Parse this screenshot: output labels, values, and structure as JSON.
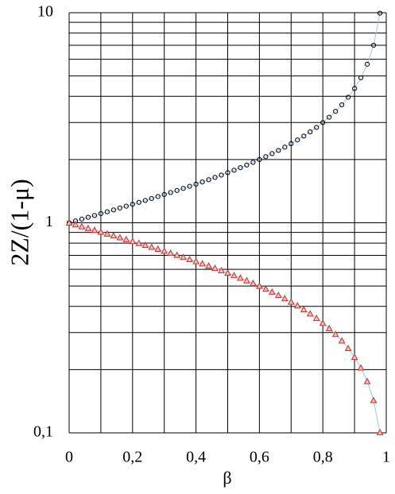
{
  "chart_data": {
    "type": "scatter",
    "xlabel": "β",
    "ylabel": "2Z/(1-μ)",
    "log_y": true,
    "grid": true,
    "xlim": [
      0,
      1
    ],
    "ylim": [
      0.1,
      10
    ],
    "xticks": [
      0,
      {
        "value": 0.2,
        "label": "0,2"
      },
      {
        "value": 0.4,
        "label": "0,4"
      },
      {
        "value": 0.6,
        "label": "0,6"
      },
      {
        "value": 0.8,
        "label": "0,8"
      },
      1
    ],
    "x_minor_ticks": [
      0.1,
      0.3,
      0.5,
      0.7,
      0.9
    ],
    "yticks": [
      {
        "value": 0.1,
        "label": "0,1"
      },
      1,
      10
    ],
    "y_minor_ticks": [
      0.2,
      0.3,
      0.4,
      0.5,
      0.6,
      0.7,
      0.8,
      0.9,
      2,
      3,
      4,
      5,
      6,
      7,
      8,
      9
    ],
    "x": [
      0,
      0.02,
      0.04,
      0.06,
      0.08,
      0.1,
      0.12,
      0.14,
      0.16,
      0.18,
      0.2,
      0.22,
      0.24,
      0.26,
      0.28,
      0.3,
      0.32,
      0.34,
      0.36,
      0.38,
      0.4,
      0.42,
      0.44,
      0.46,
      0.48,
      0.5,
      0.52,
      0.54,
      0.56,
      0.58,
      0.6,
      0.62,
      0.64,
      0.66,
      0.68,
      0.7,
      0.72,
      0.74,
      0.76,
      0.78,
      0.8,
      0.82,
      0.84,
      0.86,
      0.88,
      0.9,
      0.92,
      0.94,
      0.96,
      0.98
    ],
    "series": [
      {
        "color": "#000000",
        "marker": "circle",
        "fill": "none",
        "line_color": "#9ec5e8",
        "values": [
          1,
          1.0202,
          1.0408,
          1.0619,
          1.0835,
          1.1055,
          1.1282,
          1.1513,
          1.1751,
          1.1996,
          1.2247,
          1.2506,
          1.2773,
          1.3049,
          1.3333,
          1.3628,
          1.3933,
          1.4249,
          1.4577,
          1.4919,
          1.5275,
          1.5647,
          1.6036,
          1.6443,
          1.687,
          1.7321,
          1.7795,
          1.8297,
          1.8829,
          1.9396,
          2,
          2.0647,
          2.1344,
          2.2096,
          2.2913,
          2.3805,
          2.4785,
          2.5869,
          2.708,
          2.8445,
          3,
          3.1798,
          3.3912,
          3.645,
          3.9581,
          4.3589,
          4.899,
          5.6862,
          7,
          9.9499
        ]
      },
      {
        "color": "#d0281e",
        "marker": "triangle",
        "fill": "#f6c7c2",
        "line_color": "#9ec5e8",
        "values": [
          1,
          0.9802,
          0.9608,
          0.9417,
          0.923,
          0.9045,
          0.8864,
          0.8686,
          0.851,
          0.8336,
          0.8165,
          0.7996,
          0.7829,
          0.7664,
          0.75,
          0.7338,
          0.7177,
          0.7018,
          0.686,
          0.6703,
          0.6547,
          0.6391,
          0.6236,
          0.6082,
          0.5928,
          0.5774,
          0.562,
          0.5465,
          0.5311,
          0.5156,
          0.5,
          0.4843,
          0.4685,
          0.4526,
          0.4364,
          0.4201,
          0.4035,
          0.3866,
          0.3693,
          0.3516,
          0.3333,
          0.3145,
          0.2949,
          0.2744,
          0.2526,
          0.2294,
          0.2041,
          0.1759,
          0.1429,
          0.1005
        ]
      }
    ]
  }
}
